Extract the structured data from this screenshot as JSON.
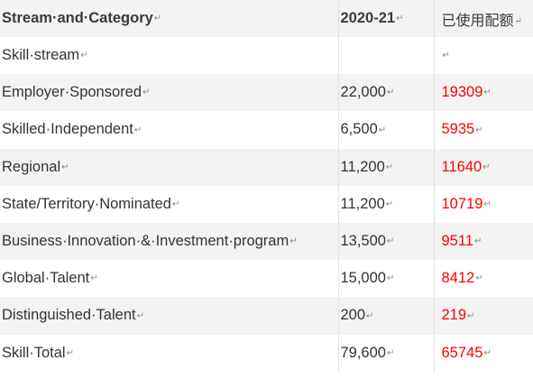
{
  "table": {
    "headers": [
      "Stream·and·Category",
      "2020-21",
      "已使用配额"
    ],
    "rows": [
      {
        "category": "Skill·stream",
        "planning": "",
        "used": ""
      },
      {
        "category": "Employer·Sponsored",
        "planning": "22,000",
        "used": "19309"
      },
      {
        "category": "Skilled·Independent",
        "planning": "6,500",
        "used": "5935"
      },
      {
        "category": "Regional",
        "planning": "11,200",
        "used": "11640"
      },
      {
        "category": "State/Territory·Nominated",
        "planning": "11,200",
        "used": "10719"
      },
      {
        "category": "Business·Innovation·&·Investment·program",
        "planning": "13,500",
        "used": "9511"
      },
      {
        "category": "Global·Talent",
        "planning": "15,000",
        "used": "8412"
      },
      {
        "category": "Distinguished·Talent",
        "planning": "200",
        "used": "219"
      },
      {
        "category": "Skill·Total",
        "planning": "79,600",
        "used": "65745"
      }
    ],
    "paragraph_mark": "↵"
  }
}
